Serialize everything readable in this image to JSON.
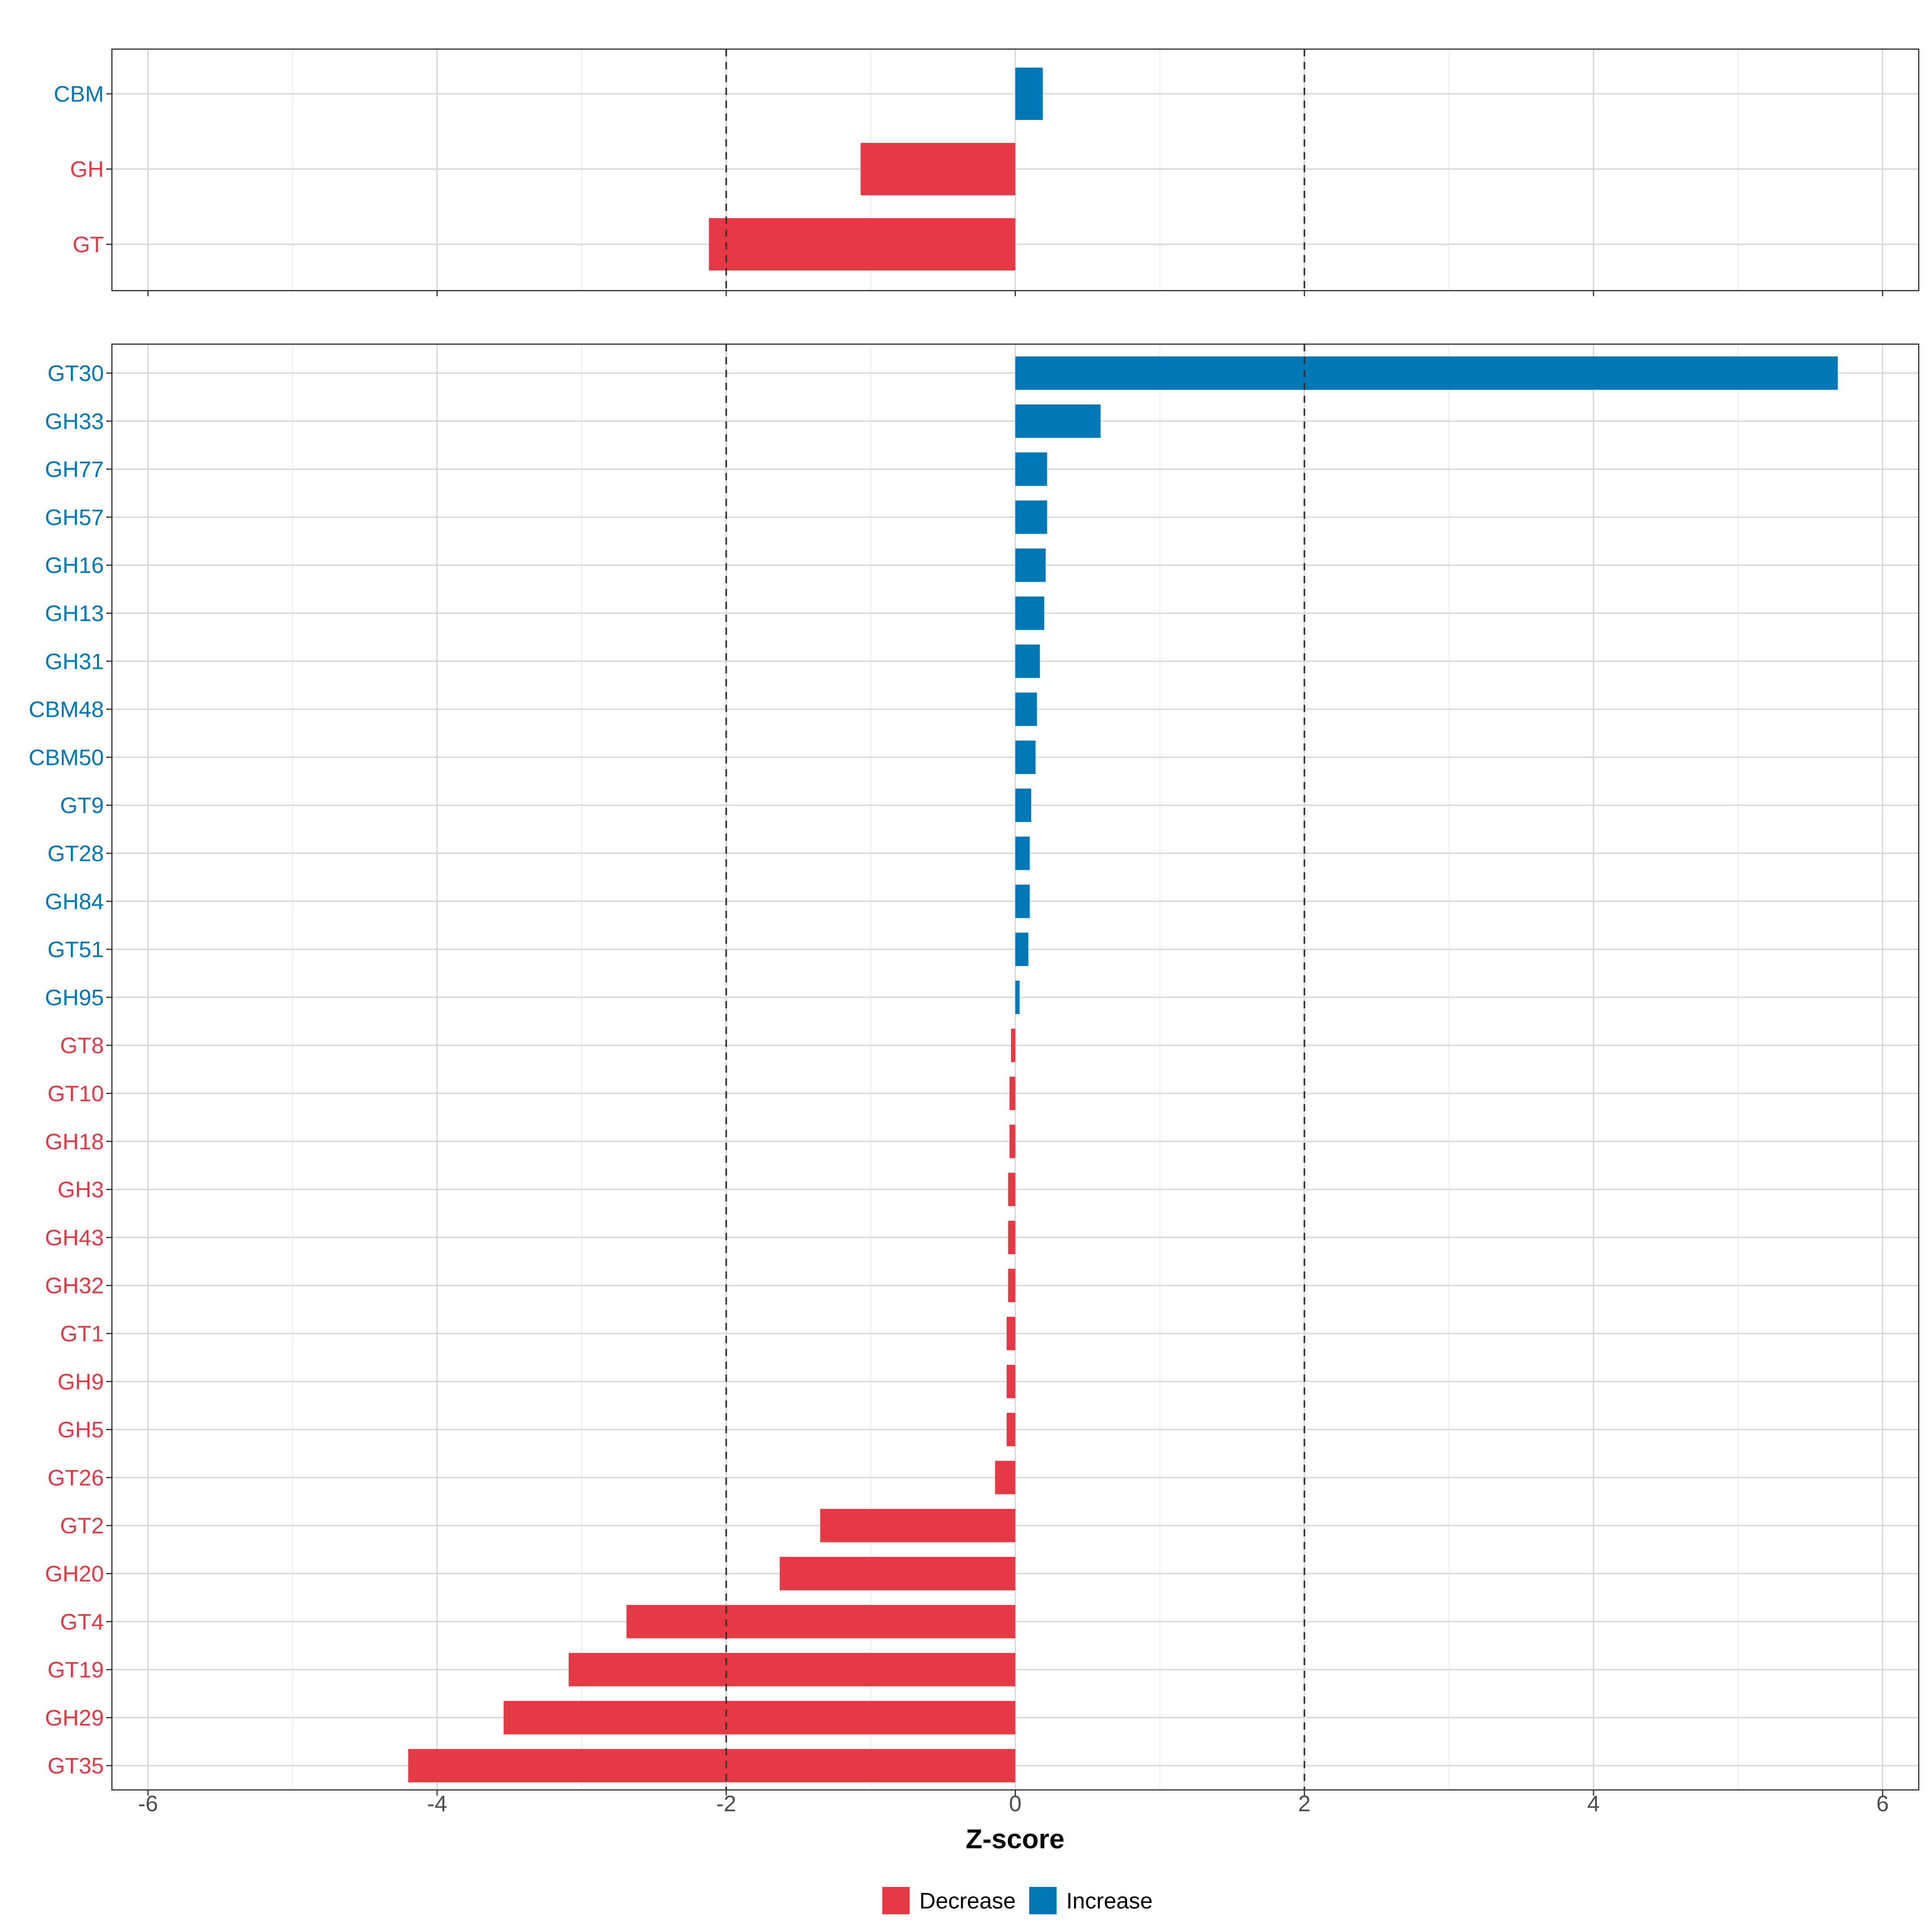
{
  "chart_data": {
    "type": "bar",
    "orientation": "horizontal",
    "xlabel": "Z-score",
    "xlim": [
      -6.25,
      6.25
    ],
    "x_ticks": [
      -6,
      -4,
      -2,
      0,
      2,
      4,
      6
    ],
    "reference_lines": [
      -2,
      2
    ],
    "grid": true,
    "legend_position": "bottom",
    "colors": {
      "Decrease": "#E63946",
      "Increase": "#0077B6"
    },
    "legend": [
      {
        "name": "Decrease",
        "label": "Decrease"
      },
      {
        "name": "Increase",
        "label": "Increase"
      }
    ],
    "panels": [
      {
        "name": "classes",
        "categories": [
          "CBM",
          "GH",
          "GT"
        ],
        "values": [
          0.19,
          -1.07,
          -2.12
        ],
        "groups": [
          "Increase",
          "Decrease",
          "Decrease"
        ]
      },
      {
        "name": "families",
        "categories": [
          "GT30",
          "GH33",
          "GH77",
          "GH57",
          "GH16",
          "GH13",
          "GH31",
          "CBM48",
          "CBM50",
          "GT9",
          "GT28",
          "GH84",
          "GT51",
          "GH95",
          "GT8",
          "GT10",
          "GH18",
          "GH3",
          "GH43",
          "GH32",
          "GT1",
          "GH9",
          "GH5",
          "GT26",
          "GT2",
          "GH20",
          "GT4",
          "GT19",
          "GH29",
          "GT35"
        ],
        "values": [
          5.69,
          0.59,
          0.22,
          0.22,
          0.21,
          0.2,
          0.17,
          0.15,
          0.14,
          0.11,
          0.1,
          0.1,
          0.09,
          0.03,
          -0.03,
          -0.04,
          -0.04,
          -0.05,
          -0.05,
          -0.05,
          -0.06,
          -0.06,
          -0.06,
          -0.14,
          -1.35,
          -1.63,
          -2.69,
          -3.09,
          -3.54,
          -4.2
        ],
        "groups": [
          "Increase",
          "Increase",
          "Increase",
          "Increase",
          "Increase",
          "Increase",
          "Increase",
          "Increase",
          "Increase",
          "Increase",
          "Increase",
          "Increase",
          "Increase",
          "Increase",
          "Decrease",
          "Decrease",
          "Decrease",
          "Decrease",
          "Decrease",
          "Decrease",
          "Decrease",
          "Decrease",
          "Decrease",
          "Decrease",
          "Decrease",
          "Decrease",
          "Decrease",
          "Decrease",
          "Decrease",
          "Decrease"
        ]
      }
    ]
  }
}
